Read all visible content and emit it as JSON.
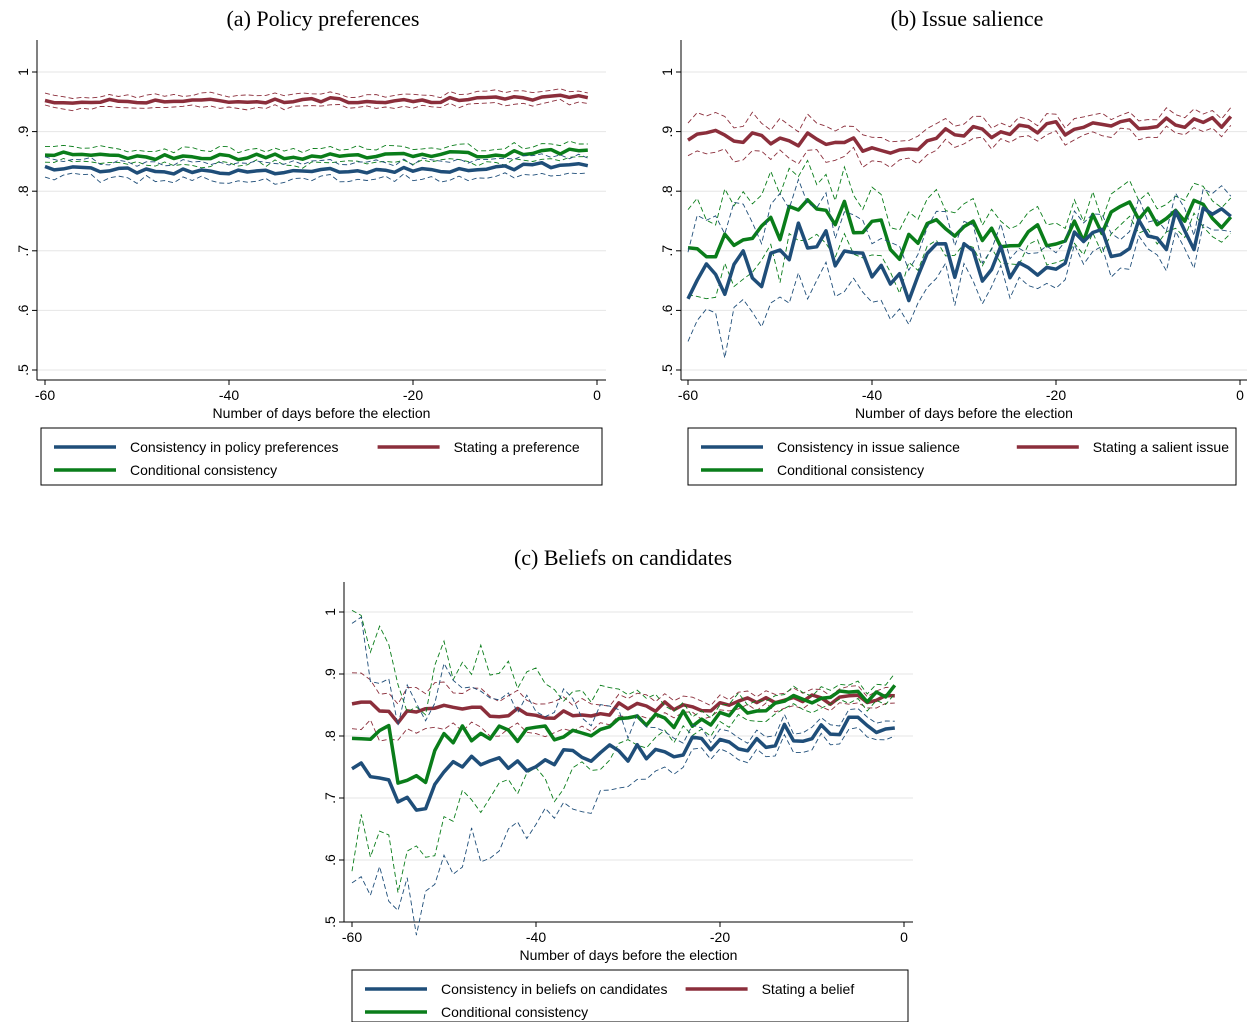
{
  "colors": {
    "consistency": "#1f4e79",
    "stating": "#8b2e3b",
    "conditional": "#0a7d1a",
    "grid": "#e6e6e6"
  },
  "chart_data": [
    {
      "id": "a",
      "type": "line",
      "title": "(a) Policy preferences",
      "xlabel": "Number of days before the election",
      "ylabel": "",
      "xlim": [
        -60,
        0
      ],
      "ylim": [
        0.5,
        1
      ],
      "xticks": [
        -60,
        -40,
        -20,
        0
      ],
      "xtick_labels": [
        "-60",
        "-40",
        "-20",
        "0"
      ],
      "yticks": [
        0.5,
        0.6,
        0.7,
        0.8,
        0.9,
        1
      ],
      "ytick_labels": [
        ".5",
        ".6",
        ".7",
        ".8",
        ".9",
        "1"
      ],
      "grid": true,
      "legend": [
        "Consistency in policy preferences",
        "Stating a preference",
        "Conditional consistency"
      ],
      "series": [
        {
          "name": "Stating a preference",
          "key": "stating",
          "start": -60,
          "end": -1,
          "noise": 0.004,
          "anchors": [
            [
              -60,
              0.949
            ],
            [
              -50,
              0.952
            ],
            [
              -40,
              0.951
            ],
            [
              -30,
              0.953
            ],
            [
              -20,
              0.952
            ],
            [
              -10,
              0.955
            ],
            [
              -1,
              0.96
            ]
          ],
          "band": 0.01
        },
        {
          "name": "Conditional consistency",
          "key": "conditional",
          "start": -60,
          "end": -1,
          "noise": 0.005,
          "anchors": [
            [
              -60,
              0.862
            ],
            [
              -50,
              0.858
            ],
            [
              -40,
              0.857
            ],
            [
              -30,
              0.858
            ],
            [
              -20,
              0.86
            ],
            [
              -10,
              0.863
            ],
            [
              -1,
              0.868
            ]
          ],
          "band": 0.012
        },
        {
          "name": "Consistency in policy preferences",
          "key": "consistency",
          "start": -60,
          "end": -1,
          "noise": 0.005,
          "anchors": [
            [
              -60,
              0.838
            ],
            [
              -50,
              0.834
            ],
            [
              -40,
              0.832
            ],
            [
              -30,
              0.834
            ],
            [
              -20,
              0.835
            ],
            [
              -10,
              0.84
            ],
            [
              -1,
              0.847
            ]
          ],
          "band": 0.014
        }
      ]
    },
    {
      "id": "b",
      "type": "line",
      "title": "(b) Issue salience",
      "xlabel": "Number of days before the election",
      "ylabel": "",
      "xlim": [
        -60,
        0
      ],
      "ylim": [
        0.5,
        1
      ],
      "xticks": [
        -60,
        -40,
        -20,
        0
      ],
      "xtick_labels": [
        "-60",
        "-40",
        "-20",
        "0"
      ],
      "yticks": [
        0.5,
        0.6,
        0.7,
        0.8,
        0.9,
        1
      ],
      "ytick_labels": [
        ".5",
        ".6",
        ".7",
        ".8",
        ".9",
        "1"
      ],
      "grid": true,
      "legend": [
        "Consistency in issue salience",
        "Stating a salient issue",
        "Conditional consistency"
      ],
      "series": [
        {
          "name": "Stating a salient issue",
          "key": "stating",
          "start": -60,
          "end": -1,
          "noise": 0.012,
          "anchors": [
            [
              -60,
              0.895
            ],
            [
              -52,
              0.89
            ],
            [
              -44,
              0.885
            ],
            [
              -36,
              0.868
            ],
            [
              -34,
              0.895
            ],
            [
              -20,
              0.905
            ],
            [
              -10,
              0.915
            ],
            [
              -1,
              0.918
            ]
          ],
          "band": 0.03,
          "band_end": 0.015
        },
        {
          "name": "Conditional consistency",
          "key": "conditional",
          "start": -60,
          "end": -1,
          "noise": 0.03,
          "anchors": [
            [
              -60,
              0.7
            ],
            [
              -52,
              0.72
            ],
            [
              -47,
              0.785
            ],
            [
              -40,
              0.73
            ],
            [
              -36,
              0.7
            ],
            [
              -34,
              0.765
            ],
            [
              -28,
              0.72
            ],
            [
              -20,
              0.74
            ],
            [
              -10,
              0.755
            ],
            [
              -1,
              0.77
            ]
          ],
          "band": 0.07,
          "band_end": 0.03
        },
        {
          "name": "Consistency in issue salience",
          "key": "consistency",
          "start": -60,
          "end": -1,
          "noise": 0.035,
          "anchors": [
            [
              -60,
              0.65
            ],
            [
              -52,
              0.67
            ],
            [
              -47,
              0.735
            ],
            [
              -40,
              0.67
            ],
            [
              -36,
              0.63
            ],
            [
              -34,
              0.71
            ],
            [
              -28,
              0.67
            ],
            [
              -20,
              0.7
            ],
            [
              -10,
              0.73
            ],
            [
              -1,
              0.74
            ]
          ],
          "band": 0.09,
          "band_end": 0.03
        }
      ]
    },
    {
      "id": "c",
      "type": "line",
      "title": "(c) Beliefs on candidates",
      "xlabel": "Number of days before the election",
      "ylabel": "",
      "xlim": [
        -60,
        0
      ],
      "ylim": [
        0.5,
        1
      ],
      "xticks": [
        -60,
        -40,
        -20,
        0
      ],
      "xtick_labels": [
        "-60",
        "-40",
        "-20",
        "0"
      ],
      "yticks": [
        0.5,
        0.6,
        0.7,
        0.8,
        0.9,
        1
      ],
      "ytick_labels": [
        ".5",
        ".6",
        ".7",
        ".8",
        ".9",
        "1"
      ],
      "grid": true,
      "legend": [
        "Consistency in beliefs on candidates",
        "Stating a belief",
        "Conditional consistency"
      ],
      "series": [
        {
          "name": "Stating a belief",
          "key": "stating",
          "start": -60,
          "end": -1,
          "noise": 0.01,
          "anchors": [
            [
              -60,
              0.855
            ],
            [
              -55,
              0.83
            ],
            [
              -48,
              0.845
            ],
            [
              -40,
              0.835
            ],
            [
              -30,
              0.845
            ],
            [
              -20,
              0.85
            ],
            [
              -10,
              0.86
            ],
            [
              -1,
              0.865
            ]
          ],
          "band": 0.04,
          "band_end": 0.012
        },
        {
          "name": "Conditional consistency",
          "key": "conditional",
          "start": -60,
          "end": -1,
          "noise": 0.018,
          "anchors": [
            [
              -60,
              0.785
            ],
            [
              -56,
              0.8
            ],
            [
              -55,
              0.73
            ],
            [
              -52,
              0.74
            ],
            [
              -50,
              0.805
            ],
            [
              -40,
              0.8
            ],
            [
              -30,
              0.82
            ],
            [
              -20,
              0.83
            ],
            [
              -10,
              0.855
            ],
            [
              -1,
              0.865
            ]
          ],
          "band": 0.17,
          "band_end": 0.015
        },
        {
          "name": "Consistency in beliefs on candidates",
          "key": "consistency",
          "start": -60,
          "end": -1,
          "noise": 0.018,
          "anchors": [
            [
              -60,
              0.755
            ],
            [
              -56,
              0.74
            ],
            [
              -55,
              0.69
            ],
            [
              -52,
              0.69
            ],
            [
              -50,
              0.76
            ],
            [
              -40,
              0.755
            ],
            [
              -30,
              0.775
            ],
            [
              -20,
              0.785
            ],
            [
              -10,
              0.81
            ],
            [
              -1,
              0.815
            ]
          ],
          "band": 0.2,
          "band_end": 0.015
        }
      ]
    }
  ]
}
